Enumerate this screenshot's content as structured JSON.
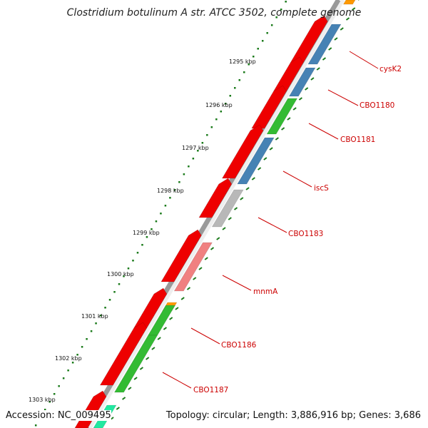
{
  "title": "Clostridium botulinum A str. ATCC 3502, complete genome",
  "footer": {
    "accession": "Accession: NC_009495",
    "summary": "Topology: circular; Length: 3,886,916 bp; Genes: 3,686"
  },
  "scale_labels": [
    "1295 kbp",
    "1296 kbp",
    "1297 kbp",
    "1298 kbp",
    "1299 kbp",
    "1300 kbp",
    "1301 kbp",
    "1302 kbp",
    "1303 kbp"
  ],
  "gene_labels": [
    "cysK2",
    "CBO1180",
    "CBO1181",
    "iscS",
    "CBO1183",
    "mnmA",
    "CBO1186",
    "CBO1187"
  ],
  "colors": {
    "cds": "#ee0000",
    "blue": "#4682b4",
    "green": "#33bb33",
    "gray": "#b8b8b8",
    "pink": "#f08080",
    "orange": "#ff9900",
    "teal": "#22e8a0",
    "label": "#cc0000",
    "tick": "#1a7a1a",
    "backbone": "#777777"
  }
}
